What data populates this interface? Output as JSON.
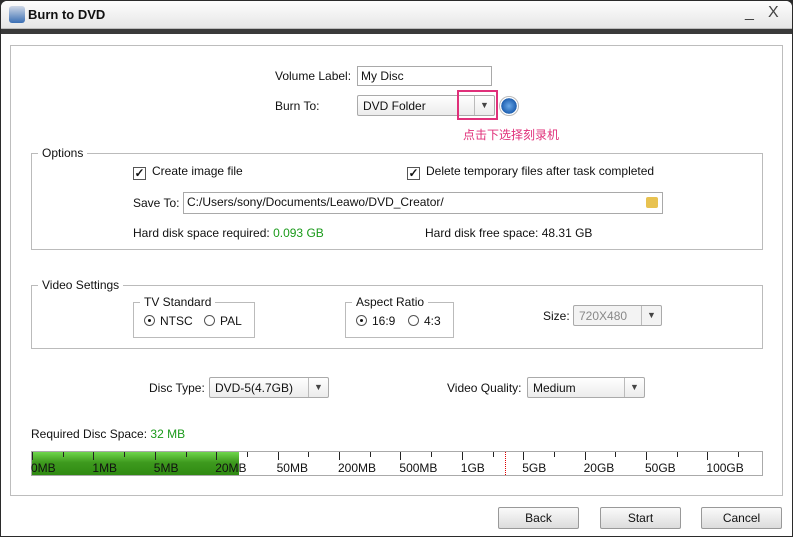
{
  "window": {
    "title": "Burn to DVD",
    "minimize": "_",
    "close": "X"
  },
  "volume_label": {
    "label": "Volume Label:",
    "value": "My Disc"
  },
  "burn_to": {
    "label": "Burn To:",
    "value": "DVD Folder",
    "hint": "点击下选择刻录机",
    "hint_color": "#e0307a"
  },
  "options": {
    "legend": "Options",
    "create_image": {
      "label": "Create image file",
      "checked": true
    },
    "delete_temp": {
      "label": "Delete temporary files after task completed",
      "checked": true
    },
    "save_to_label": "Save To:",
    "save_to_value": "C:/Users/sony/Documents/Leawo/DVD_Creator/",
    "space_required_label": "Hard disk space required:",
    "space_required_value": "0.093 GB",
    "free_space_label": "Hard disk free space:",
    "free_space_value": "48.31 GB"
  },
  "video": {
    "legend": "Video Settings",
    "tv_standard": {
      "legend": "TV Standard",
      "options": [
        "NTSC",
        "PAL"
      ],
      "selected": "NTSC"
    },
    "aspect_ratio": {
      "legend": "Aspect Ratio",
      "options": [
        "16:9",
        "4:3"
      ],
      "selected": "16:9"
    },
    "size_label": "Size:",
    "size_value": "720X480"
  },
  "disc_type": {
    "label": "Disc Type:",
    "value": "DVD-5(4.7GB)"
  },
  "video_quality": {
    "label": "Video Quality:",
    "value": "Medium"
  },
  "required": {
    "label": "Required Disc Space:",
    "value": "32 MB",
    "fill_color": "#3e9a1e"
  },
  "scale": {
    "labels": [
      "0MB",
      "1MB",
      "5MB",
      "20MB",
      "50MB",
      "200MB",
      "500MB",
      "1GB",
      "5GB",
      "20GB",
      "50GB",
      "100GB"
    ],
    "filled_fraction": 0.284,
    "limit_marker": "4.7GB"
  },
  "buttons": {
    "back": "Back",
    "start": "Start",
    "cancel": "Cancel"
  }
}
